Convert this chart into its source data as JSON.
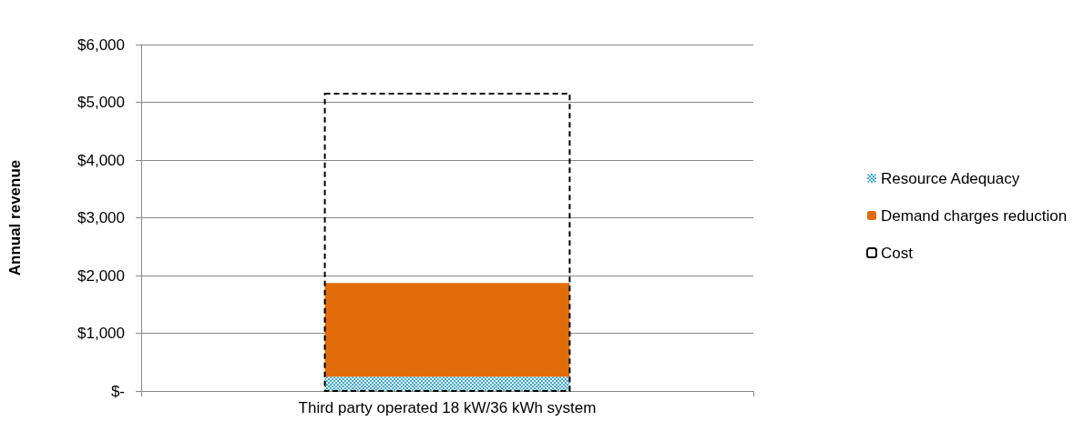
{
  "chart_data": {
    "type": "bar",
    "ylabel": "Annual revenue",
    "categories": [
      "Third party operated 18 kW/36 kWh system"
    ],
    "series": [
      {
        "name": "Resource Adequacy",
        "color": "#3fa9c9",
        "values": [
          250
        ],
        "base": [
          0
        ]
      },
      {
        "name": "Demand charges reduction",
        "color": "#e36c0a",
        "values": [
          1620
        ],
        "base": [
          250
        ]
      },
      {
        "name": "Cost",
        "color": "#000000",
        "values": [
          5150
        ],
        "base": [
          0
        ],
        "line_style": "dashed"
      }
    ],
    "ylim": [
      0,
      6000
    ],
    "yticks": [
      {
        "value": 0,
        "label": "$-"
      },
      {
        "value": 1000,
        "label": "$1,000"
      },
      {
        "value": 2000,
        "label": "$2,000"
      },
      {
        "value": 3000,
        "label": "$3,000"
      },
      {
        "value": 4000,
        "label": "$4,000"
      },
      {
        "value": 5000,
        "label": "$5,000"
      },
      {
        "value": 6000,
        "label": "$6,000"
      }
    ],
    "grid": "y",
    "legend": "right"
  }
}
